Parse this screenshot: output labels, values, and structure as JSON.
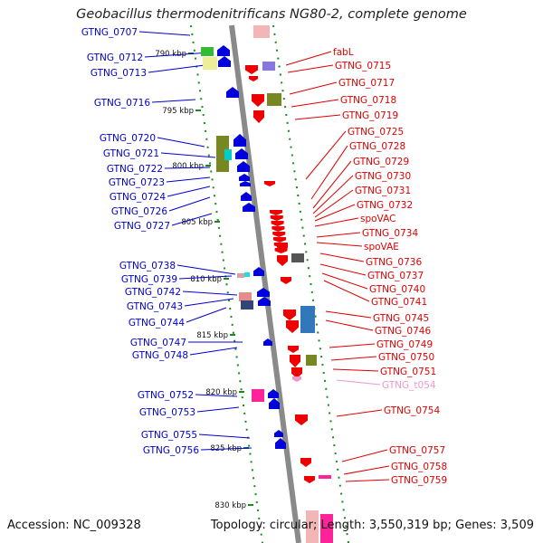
{
  "title": "Geobacillus thermodenitrificans NG80-2, complete genome",
  "footer": {
    "accession": "Accession: NC_009328",
    "summary": "Topology: circular; Length: 3,550,319 bp; Genes: 3,509"
  },
  "ticks": [
    "790 kbp",
    "795 kbp",
    "800 kbp",
    "805 kbp",
    "810 kbp",
    "815 kbp",
    "820 kbp",
    "825 kbp",
    "830 kbp"
  ],
  "left_labels": [
    "GTNG_0707",
    "GTNG_0712",
    "GTNG_0713",
    "GTNG_0716",
    "GTNG_0720",
    "GTNG_0721",
    "GTNG_0722",
    "GTNG_0723",
    "GTNG_0724",
    "GTNG_0726",
    "GTNG_0727",
    "GTNG_0738",
    "GTNG_0739",
    "GTNG_0742",
    "GTNG_0743",
    "GTNG_0744",
    "GTNG_0747",
    "GTNG_0748",
    "GTNG_0752",
    "GTNG_0753",
    "GTNG_0755",
    "GTNG_0756"
  ],
  "right_labels": [
    "fabL",
    "GTNG_0715",
    "GTNG_0717",
    "GTNG_0718",
    "GTNG_0719",
    "GTNG_0725",
    "GTNG_0728",
    "GTNG_0729",
    "GTNG_0730",
    "GTNG_0731",
    "GTNG_0732",
    "spoVAC",
    "GTNG_0734",
    "spoVAE",
    "GTNG_0736",
    "GTNG_0737",
    "GTNG_0740",
    "GTNG_0741",
    "GTNG_0745",
    "GTNG_0746",
    "GTNG_0749",
    "GTNG_0750",
    "GTNG_0751",
    "GTNG_t054",
    "GTNG_0754",
    "GTNG_0757",
    "GTNG_0758",
    "GTNG_0759"
  ],
  "colors": {
    "forward": "#0000cc",
    "reverse": "#dd0000",
    "trna": "#ee99cc",
    "backbone": "#8a8a8a",
    "tick": "#1a8a1a"
  }
}
